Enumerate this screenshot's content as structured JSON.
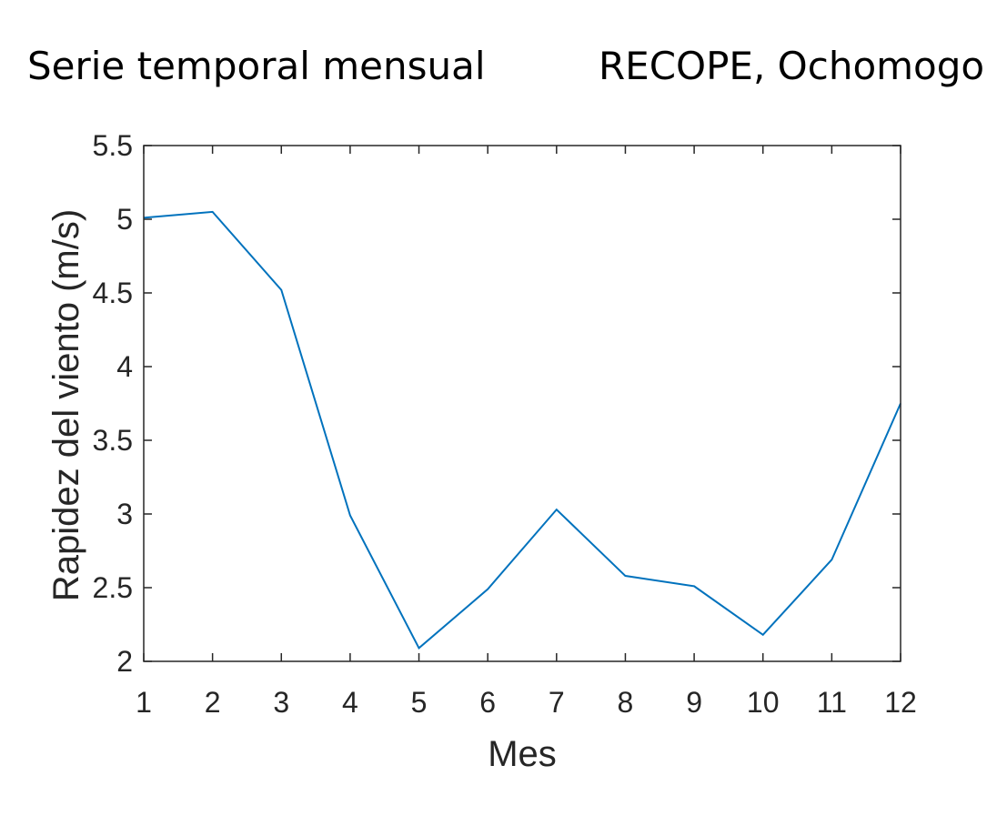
{
  "header": {
    "title_left": "Serie temporal mensual",
    "title_right": "RECOPE, Ochomogo"
  },
  "chart_data": {
    "type": "line",
    "title": "",
    "xlabel": "Mes",
    "ylabel": "Rapidez del viento (m/s)",
    "xlim": [
      1,
      12
    ],
    "ylim": [
      2,
      5.5
    ],
    "xticks": [
      1,
      2,
      3,
      4,
      5,
      6,
      7,
      8,
      9,
      10,
      11,
      12
    ],
    "yticks": [
      2,
      2.5,
      3,
      3.5,
      4,
      4.5,
      5,
      5.5
    ],
    "ytick_labels": [
      "2",
      "2.5",
      "3",
      "3.5",
      "4",
      "4.5",
      "5",
      "5.5"
    ],
    "grid": false,
    "series": [
      {
        "color": "#0072BD",
        "x": [
          1,
          2,
          3,
          4,
          5,
          6,
          7,
          8,
          9,
          10,
          11,
          12
        ],
        "y": [
          5.01,
          5.05,
          4.52,
          2.99,
          2.09,
          2.49,
          3.03,
          2.58,
          2.51,
          2.18,
          2.69,
          3.75
        ]
      }
    ]
  }
}
